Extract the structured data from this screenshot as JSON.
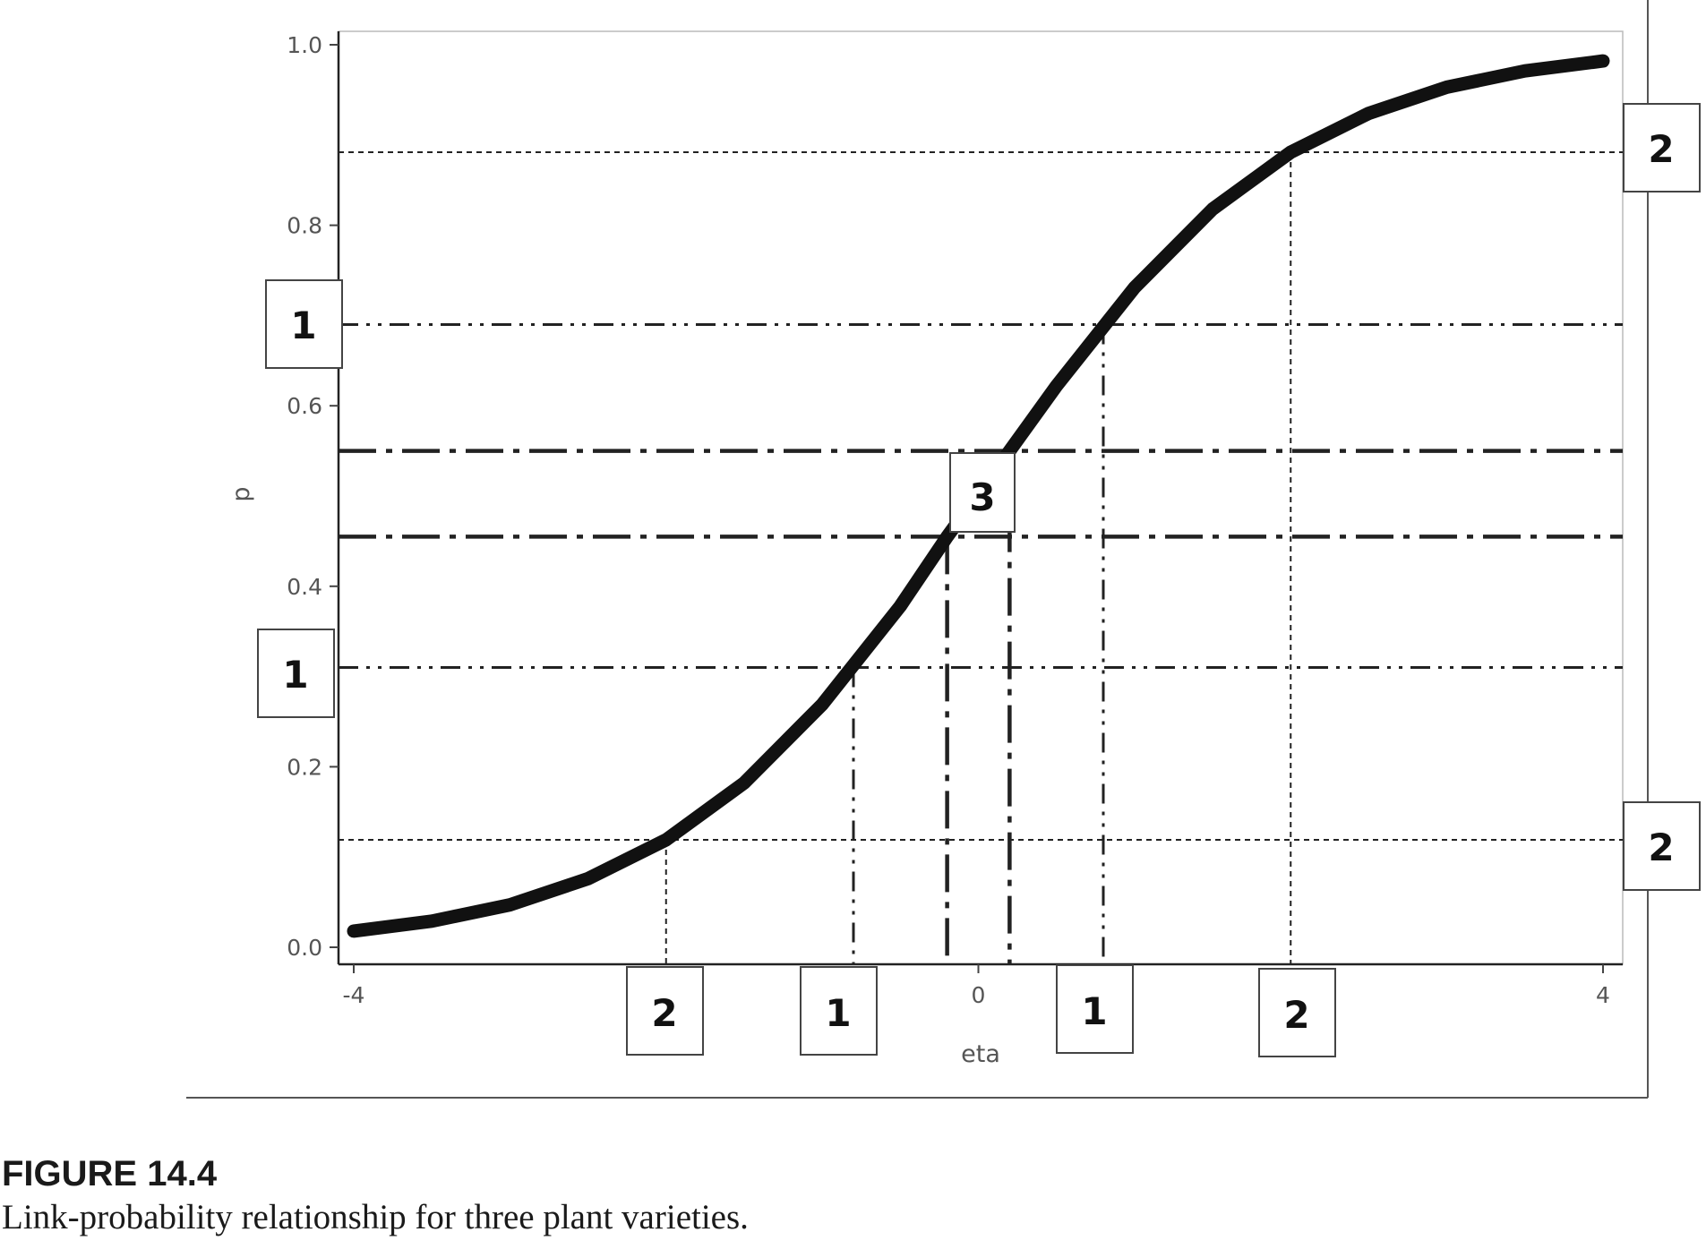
{
  "figure": {
    "number": "FIGURE 14.4",
    "caption": "Link-probability relationship for three plant varieties."
  },
  "chart_data": {
    "type": "line",
    "title": "",
    "xlabel": "eta",
    "ylabel": "p",
    "xlim": [
      -4,
      4
    ],
    "ylim": [
      0.0,
      1.0
    ],
    "x_ticks": [
      {
        "value": -4,
        "label": "-4"
      },
      {
        "value": 0,
        "label": "0"
      },
      {
        "value": 4,
        "label": "4"
      }
    ],
    "y_ticks": [
      {
        "value": 0.0,
        "label": "0.0"
      },
      {
        "value": 0.2,
        "label": "0.2"
      },
      {
        "value": 0.4,
        "label": "0.4"
      },
      {
        "value": 0.6,
        "label": "0.6"
      },
      {
        "value": 0.8,
        "label": "0.8"
      },
      {
        "value": 1.0,
        "label": "1.0"
      }
    ],
    "grid": false,
    "series": [
      {
        "curve": "logistic",
        "x": [
          -4.0,
          -3.5,
          -3.0,
          -2.5,
          -2.0,
          -1.5,
          -1.0,
          -0.5,
          -0.2,
          0.2,
          0.5,
          1.0,
          1.5,
          2.0,
          2.5,
          3.0,
          3.5,
          4.0
        ],
        "y": [
          0.018,
          0.029,
          0.047,
          0.076,
          0.119,
          0.182,
          0.269,
          0.378,
          0.455,
          0.55,
          0.622,
          0.731,
          0.818,
          0.881,
          0.924,
          0.953,
          0.971,
          0.982
        ]
      }
    ],
    "reference_lines": [
      {
        "variety": "2",
        "style": "dotted",
        "p": 0.119,
        "eta": -2.0
      },
      {
        "variety": "2",
        "style": "dotted",
        "p": 0.881,
        "eta": 2.0
      },
      {
        "variety": "1",
        "style": "dash-dot-dot",
        "p": 0.31,
        "eta": -0.8
      },
      {
        "variety": "1",
        "style": "dash-dot-dot",
        "p": 0.69,
        "eta": 0.8
      },
      {
        "variety": "3",
        "style": "long-dash-dot",
        "p": 0.455,
        "eta": -0.2
      },
      {
        "variety": "3",
        "style": "long-dash-dot",
        "p": 0.55,
        "eta": 0.2
      }
    ],
    "variety_labels": {
      "x_axis": [
        "2",
        "1",
        "1",
        "2"
      ],
      "left": [
        "1",
        "1"
      ],
      "right": [
        "2",
        "2"
      ],
      "center": "3"
    }
  }
}
